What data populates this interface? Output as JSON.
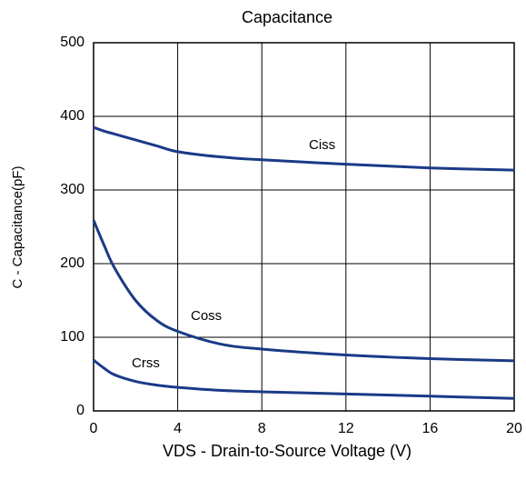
{
  "chart_data": {
    "type": "line",
    "title": "Capacitance",
    "x_label": "VDS - Drain-to-Source  Voltage (V)",
    "y_label": "C - Capacitance(pF)",
    "x": [
      0,
      0.5,
      1,
      2,
      3,
      4,
      6,
      8,
      12,
      16,
      20
    ],
    "series": [
      {
        "name": "Ciss",
        "color": "#1b3a87",
        "values": [
          385,
          380,
          376,
          368,
          360,
          352,
          345,
          341,
          335,
          330,
          327
        ]
      },
      {
        "name": "Coss",
        "color": "#1b3a87",
        "values": [
          259,
          225,
          194,
          150,
          123,
          108,
          91,
          84,
          76,
          71,
          68
        ]
      },
      {
        "name": "Crss",
        "color": "#1b3a87",
        "values": [
          69,
          58,
          49,
          40,
          35,
          32,
          28,
          26,
          23,
          20,
          17
        ]
      }
    ],
    "xlim": [
      0,
      20
    ],
    "xticks": [
      0,
      4,
      8,
      12,
      16,
      20
    ],
    "ylim": [
      0,
      500
    ],
    "yticks": [
      0,
      100,
      200,
      300,
      400,
      500
    ],
    "grid": true
  }
}
